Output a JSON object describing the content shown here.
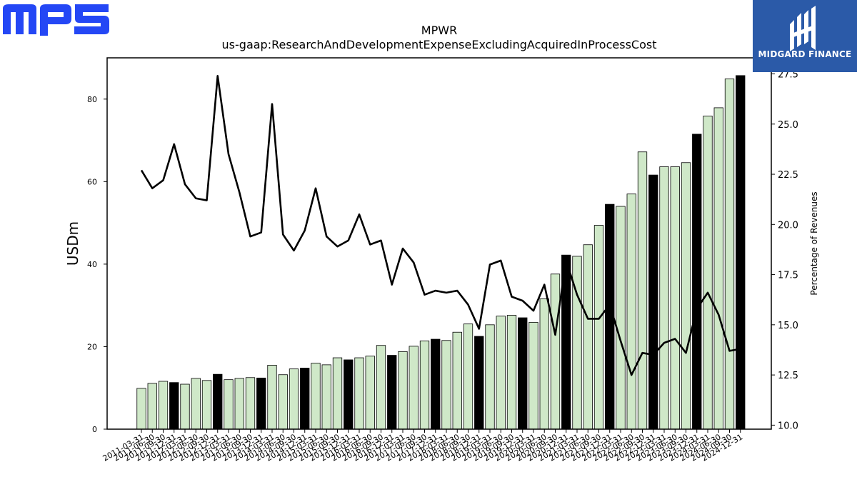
{
  "branding": {
    "left_logo": "MPS",
    "right_logo": "MIDGARD FINANCE",
    "left_color": "#2447f5",
    "right_color": "#2b5aa8"
  },
  "chart_data": {
    "type": "bar",
    "title": "MPWR",
    "subtitle": "us-gaap:ResearchAndDevelopmentExpenseExcludingAcquiredInProcessCost",
    "ylabel": "USDm",
    "y2label": "Percentage of Revenues",
    "ylim": [
      0,
      90
    ],
    "y2lim": [
      9.8,
      28.3
    ],
    "yticks": [
      0,
      20,
      40,
      60,
      80
    ],
    "y2ticks": [
      "10.0",
      "12.5",
      "15.0",
      "17.5",
      "20.0",
      "22.5",
      "25.0",
      "27.5"
    ],
    "colors": {
      "bar_quarter": "#cfe8c8",
      "bar_year_end": "#000000",
      "line": "#000000"
    },
    "categories": [
      "2011-03-31",
      "2011-06-30",
      "2011-09-30",
      "2011-12-31",
      "2012-03-31",
      "2012-06-30",
      "2012-09-30",
      "2012-12-31",
      "2013-03-31",
      "2013-06-30",
      "2013-09-30",
      "2013-12-31",
      "2014-03-31",
      "2014-06-30",
      "2014-09-30",
      "2014-12-31",
      "2015-03-31",
      "2015-06-30",
      "2015-09-30",
      "2015-12-31",
      "2016-03-31",
      "2016-06-30",
      "2016-09-30",
      "2016-12-31",
      "2017-03-31",
      "2017-06-30",
      "2017-09-30",
      "2017-12-31",
      "2018-03-31",
      "2018-06-30",
      "2018-09-30",
      "2018-12-31",
      "2019-03-31",
      "2019-06-30",
      "2019-09-30",
      "2019-12-31",
      "2020-03-31",
      "2020-06-30",
      "2020-09-30",
      "2020-12-31",
      "2021-03-31",
      "2021-06-30",
      "2021-09-30",
      "2021-12-31",
      "2022-03-31",
      "2022-06-30",
      "2022-09-30",
      "2022-12-31",
      "2023-03-31",
      "2023-06-30",
      "2023-09-30",
      "2023-12-31",
      "2024-03-31",
      "2024-06-30",
      "2024-09-30",
      "2024-12-31"
    ],
    "series": [
      {
        "kind": "bar",
        "values": [
          9.9,
          11.1,
          11.6,
          11.3,
          10.9,
          12.3,
          11.8,
          13.3,
          12.0,
          12.3,
          12.5,
          12.4,
          15.5,
          13.2,
          14.6,
          14.8,
          16.0,
          15.6,
          17.3,
          16.8,
          17.3,
          17.7,
          20.3,
          17.9,
          18.8,
          20.1,
          21.4,
          21.8,
          21.5,
          23.5,
          25.5,
          22.5,
          25.3,
          27.4,
          27.6,
          27.0,
          25.9,
          31.6,
          37.6,
          42.2,
          41.9,
          44.7,
          49.4,
          54.5,
          54.0,
          57.0,
          67.2,
          61.6,
          63.6,
          63.6,
          64.6,
          71.5,
          75.9,
          77.9,
          84.9,
          85.7
        ]
      },
      {
        "kind": "line",
        "values": [
          22.7,
          21.8,
          22.2,
          24.0,
          22.0,
          21.3,
          21.2,
          27.4,
          23.5,
          21.6,
          19.4,
          19.6,
          26.0,
          19.5,
          18.7,
          19.7,
          21.8,
          19.4,
          18.9,
          19.2,
          20.5,
          19.0,
          19.2,
          17.0,
          18.8,
          18.1,
          16.5,
          16.7,
          16.6,
          16.7,
          16.0,
          14.8,
          18.0,
          18.2,
          16.4,
          16.2,
          15.7,
          17.0,
          14.5,
          18.2,
          16.5,
          15.3,
          15.3,
          16.0,
          14.2,
          12.5,
          13.6,
          13.5,
          14.1,
          14.3,
          13.6,
          15.8,
          16.6,
          15.5,
          13.7,
          13.8
        ]
      }
    ]
  }
}
